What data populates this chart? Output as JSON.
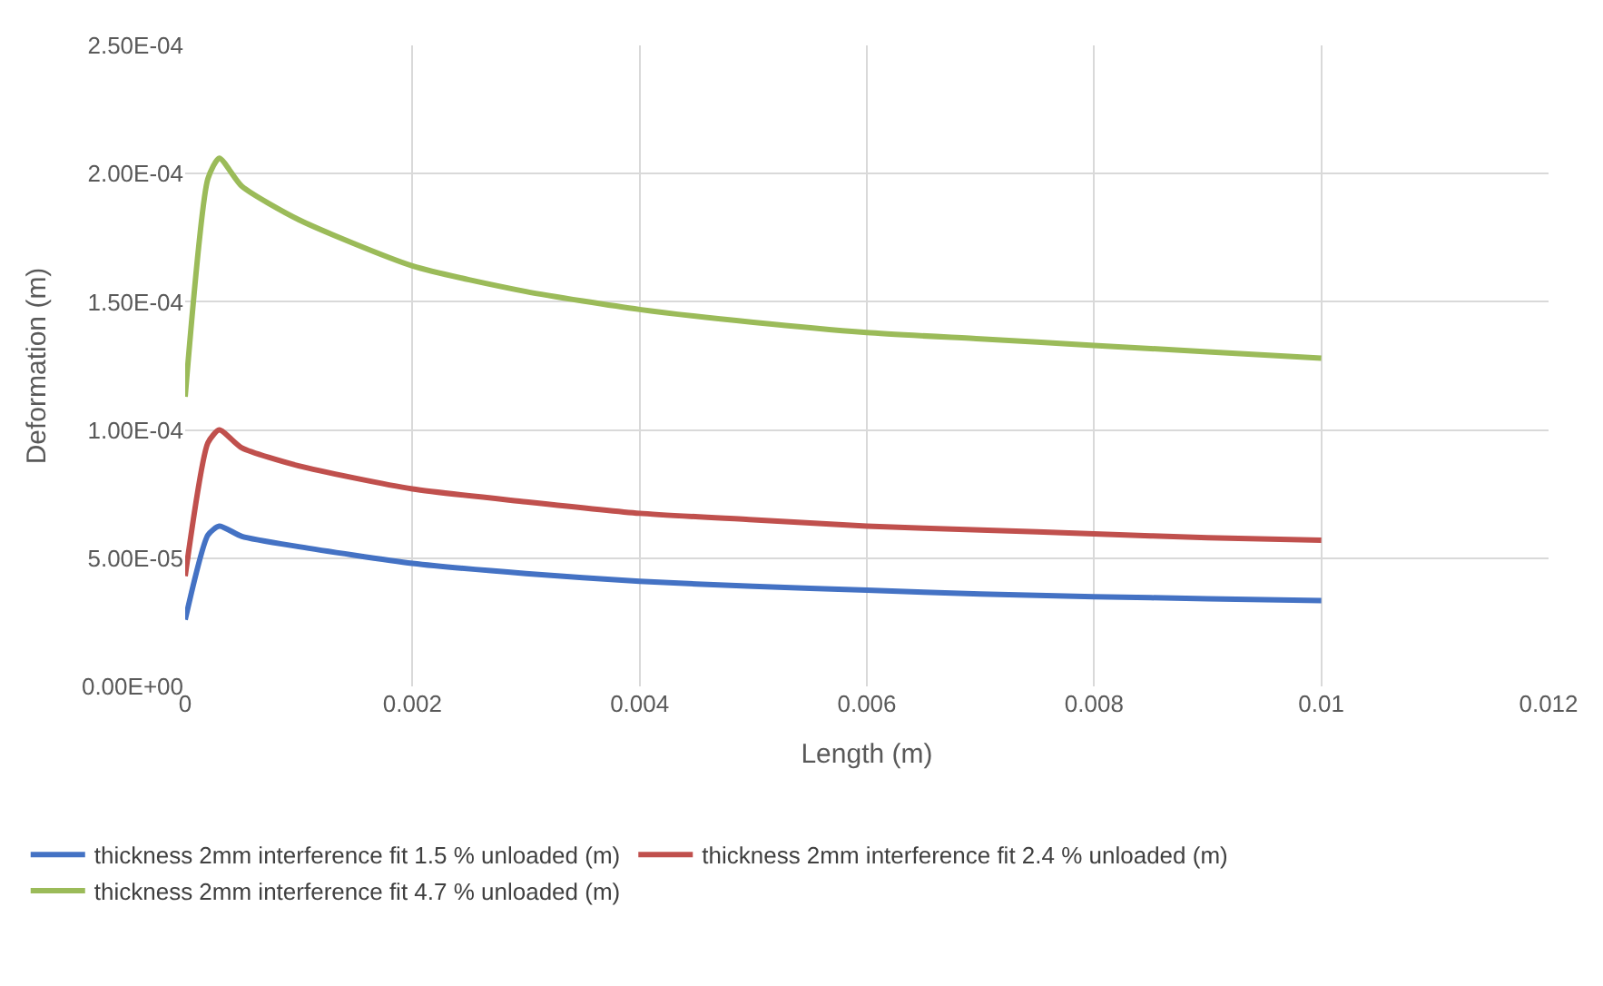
{
  "chart_data": {
    "type": "line",
    "xlabel": "Length (m)",
    "ylabel": "Deformation (m)",
    "x": [
      0,
      0.0002,
      0.0003,
      0.0005,
      0.001,
      0.002,
      0.003,
      0.004,
      0.005,
      0.006,
      0.007,
      0.008,
      0.009,
      0.01
    ],
    "series": [
      {
        "name": "thickness 2mm interference fit 1.5 % unloaded (m)",
        "color": "#4472c4",
        "values": [
          2.6e-05,
          5.9e-05,
          6.25e-05,
          5.85e-05,
          5.45e-05,
          4.8e-05,
          4.4e-05,
          4.1e-05,
          3.9e-05,
          3.75e-05,
          3.6e-05,
          3.5e-05,
          3.42e-05,
          3.35e-05
        ]
      },
      {
        "name": "thickness 2mm interference fit 2.4 % unloaded (m)",
        "color": "#c0504d",
        "values": [
          4.3e-05,
          9.5e-05,
          0.0001,
          9.3e-05,
          8.6e-05,
          7.7e-05,
          7.2e-05,
          6.75e-05,
          6.5e-05,
          6.25e-05,
          6.1e-05,
          5.95e-05,
          5.8e-05,
          5.7e-05
        ]
      },
      {
        "name": "thickness 2mm interference fit 4.7 % unloaded (m)",
        "color": "#9bbb59",
        "values": [
          0.000113,
          0.000198,
          0.000206,
          0.000195,
          0.000182,
          0.000164,
          0.000154,
          0.000147,
          0.000142,
          0.000138,
          0.0001355,
          0.000133,
          0.0001305,
          0.000128
        ]
      }
    ],
    "xlim": [
      0,
      0.012
    ],
    "xticks": [
      0,
      0.002,
      0.004,
      0.006,
      0.008,
      0.01,
      0.012
    ],
    "ylim": [
      0,
      0.00025
    ],
    "yticks": [
      {
        "value": 0,
        "label": "0.00E+00"
      },
      {
        "value": 5e-05,
        "label": "5.00E-05"
      },
      {
        "value": 0.0001,
        "label": "1.00E-04"
      },
      {
        "value": 0.00015,
        "label": "1.50E-04"
      },
      {
        "value": 0.0002,
        "label": "2.00E-04"
      },
      {
        "value": 0.00025,
        "label": "2.50E-04"
      }
    ],
    "grid": true,
    "legend": "bottom",
    "marker": "none",
    "line_style": "solid"
  }
}
